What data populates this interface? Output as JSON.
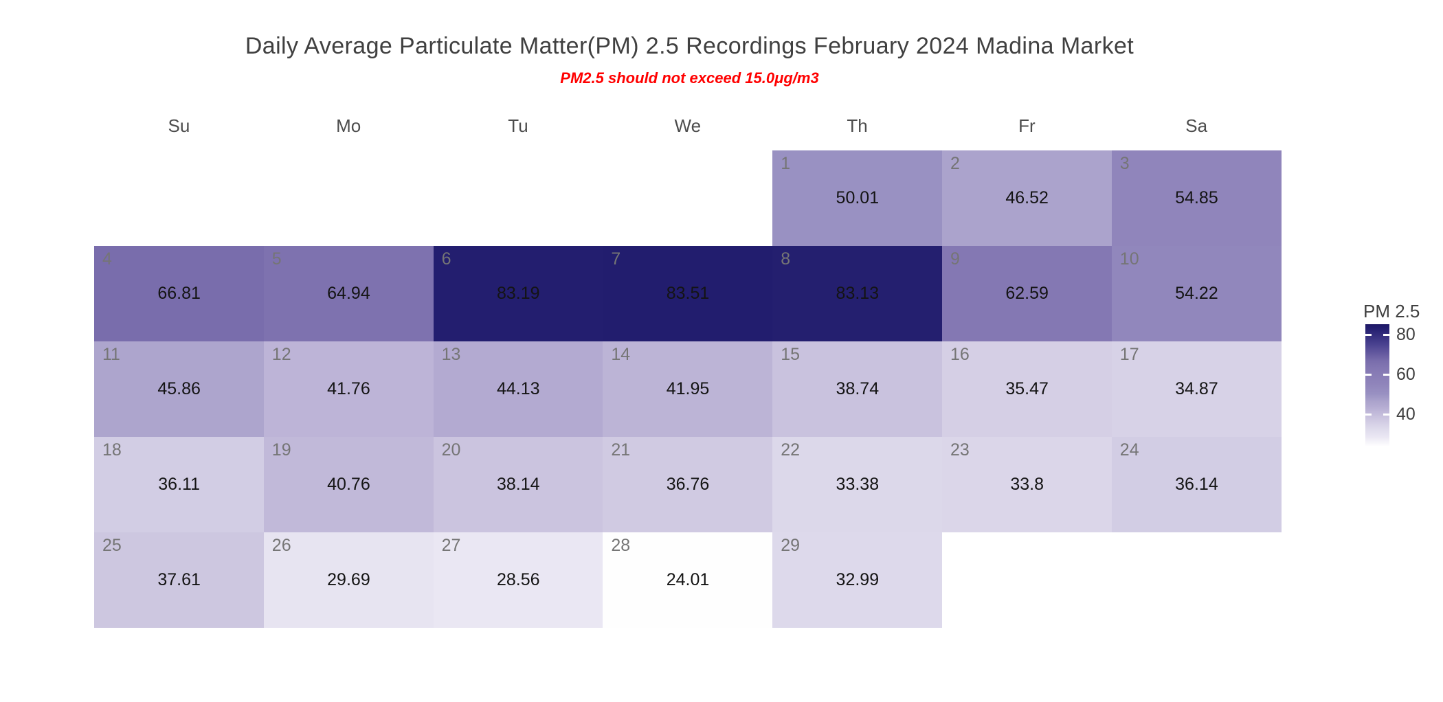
{
  "chart_data": {
    "type": "heatmap",
    "title": "Daily Average Particulate Matter(PM) 2.5 Recordings February 2024 Madina Market",
    "subtitle": "PM2.5 should not exceed 15.0μg/m3",
    "subtitle_color": "#ff0000",
    "weekday_labels": [
      "Su",
      "Mo",
      "Tu",
      "We",
      "Th",
      "Fr",
      "Sa"
    ],
    "first_day_column": 4,
    "days": [
      {
        "day": 1,
        "value": 50.01
      },
      {
        "day": 2,
        "value": 46.52
      },
      {
        "day": 3,
        "value": 54.85
      },
      {
        "day": 4,
        "value": 66.81
      },
      {
        "day": 5,
        "value": 64.94
      },
      {
        "day": 6,
        "value": 83.19
      },
      {
        "day": 7,
        "value": 83.51
      },
      {
        "day": 8,
        "value": 83.13
      },
      {
        "day": 9,
        "value": 62.59
      },
      {
        "day": 10,
        "value": 54.22
      },
      {
        "day": 11,
        "value": 45.86
      },
      {
        "day": 12,
        "value": 41.76
      },
      {
        "day": 13,
        "value": 44.13
      },
      {
        "day": 14,
        "value": 41.95
      },
      {
        "day": 15,
        "value": 38.74
      },
      {
        "day": 16,
        "value": 35.47
      },
      {
        "day": 17,
        "value": 34.87
      },
      {
        "day": 18,
        "value": 36.11
      },
      {
        "day": 19,
        "value": 40.76
      },
      {
        "day": 20,
        "value": 38.14
      },
      {
        "day": 21,
        "value": 36.76
      },
      {
        "day": 22,
        "value": 33.38
      },
      {
        "day": 23,
        "value": 33.8
      },
      {
        "day": 24,
        "value": 36.14
      },
      {
        "day": 25,
        "value": 37.61
      },
      {
        "day": 26,
        "value": 29.69
      },
      {
        "day": 27,
        "value": 28.56
      },
      {
        "day": 28,
        "value": 24.01
      },
      {
        "day": 29,
        "value": 32.99
      }
    ],
    "legend": {
      "title": "PM 2.5",
      "ticks": [
        80,
        60,
        40
      ],
      "scale_min": 23.8,
      "scale_max": 85.2
    },
    "color_scale": {
      "stops": [
        [
          23.8,
          "#ffffff"
        ],
        [
          28.6,
          "#eae7f3"
        ],
        [
          33.4,
          "#dcd8ea"
        ],
        [
          38.7,
          "#c9c2de"
        ],
        [
          44.1,
          "#b3aad1"
        ],
        [
          46.5,
          "#aba3cc"
        ],
        [
          50.0,
          "#9991c2"
        ],
        [
          54.9,
          "#9085bb"
        ],
        [
          62.6,
          "#8478b3"
        ],
        [
          66.8,
          "#796dac"
        ],
        [
          75.0,
          "#4a4290"
        ],
        [
          83.5,
          "#221d6e"
        ],
        [
          85.2,
          "#1d1865"
        ]
      ]
    }
  }
}
